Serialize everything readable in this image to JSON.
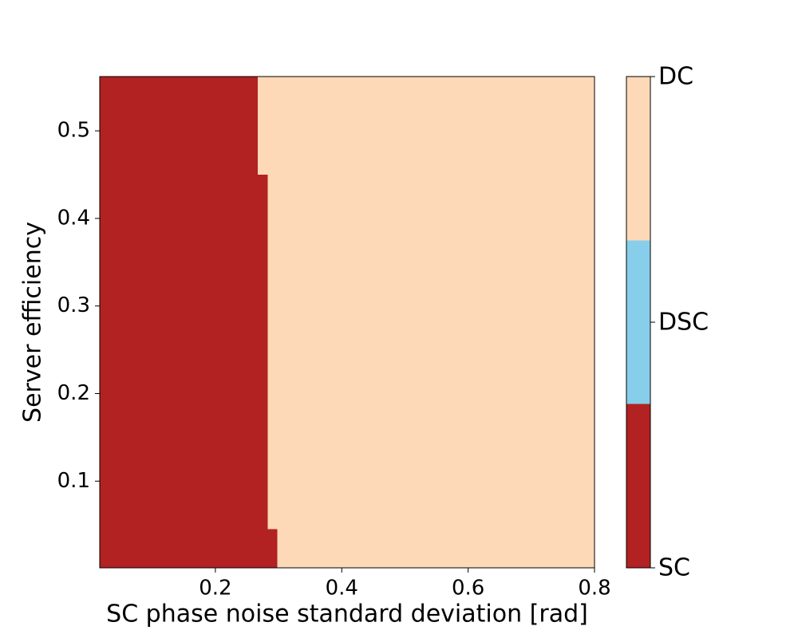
{
  "chart_data": {
    "type": "region",
    "x_label": "SC phase noise standard deviation [rad]",
    "y_label": "Server efficiency",
    "xlim": [
      0.017,
      0.8
    ],
    "xticks": [
      0.2,
      0.4,
      0.6,
      0.8
    ],
    "ylim": [
      0.001,
      0.562
    ],
    "yticks": [
      0.1,
      0.2,
      0.3,
      0.4,
      0.5
    ],
    "classes": [
      "SC",
      "DSC",
      "DC"
    ],
    "colors": [
      "#b22222",
      "#87ceeb",
      "#fdd9b8"
    ],
    "bands": [
      {
        "y": [
          0.001,
          0.045
        ],
        "boundary": 0.298
      },
      {
        "y": [
          0.045,
          0.45
        ],
        "boundary": 0.283
      },
      {
        "y": [
          0.45,
          0.562
        ],
        "boundary": 0.267
      }
    ]
  }
}
